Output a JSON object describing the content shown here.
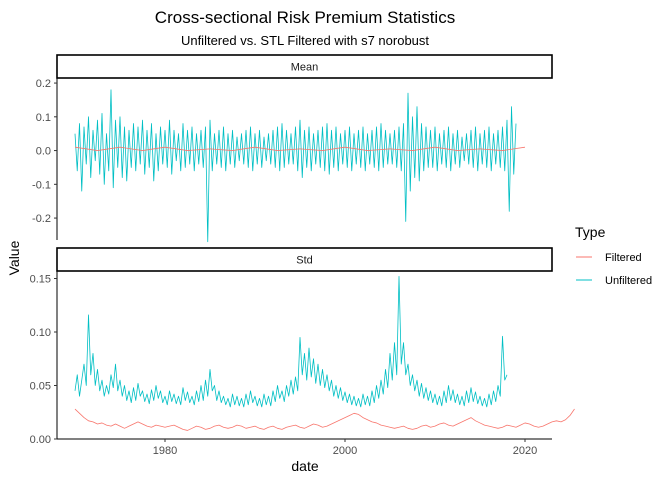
{
  "chart_data": {
    "type": "line",
    "title": "Cross-sectional Risk Premium Statistics",
    "subtitle": "Unfiltered vs. STL Filtered with s7 norobust",
    "xlabel": "date",
    "ylabel": "Value",
    "x_range": [
      1968,
      2023
    ],
    "x_ticks": [
      {
        "value": 1980,
        "label": "1980"
      },
      {
        "value": 2000,
        "label": "2000"
      },
      {
        "value": 2020,
        "label": "2020"
      }
    ],
    "legend": {
      "title": "Type",
      "placement": "right",
      "entries": [
        {
          "name": "Filtered",
          "color": "#F8766D"
        },
        {
          "name": "Unfiltered",
          "color": "#00BFC4"
        }
      ]
    },
    "panels": [
      {
        "label": "Mean",
        "ylim": [
          -0.265,
          0.215
        ],
        "y_ticks": [
          {
            "value": 0.2,
            "label": "0.2"
          },
          {
            "value": 0.1,
            "label": "0.1"
          },
          {
            "value": 0.0,
            "label": "0.0"
          },
          {
            "value": -0.1,
            "label": "-0.1"
          },
          {
            "value": -0.2,
            "label": "-0.2"
          }
        ],
        "series": [
          {
            "name": "Unfiltered",
            "color": "#00BFC4",
            "x_start": 1970.0,
            "x_step": 0.25,
            "values": [
              0.05,
              -0.06,
              0.08,
              -0.12,
              0.07,
              -0.04,
              0.1,
              -0.08,
              0.06,
              -0.03,
              0.09,
              -0.07,
              0.11,
              -0.1,
              0.05,
              -0.06,
              0.18,
              -0.11,
              0.09,
              -0.05,
              0.1,
              -0.08,
              0.07,
              -0.09,
              0.06,
              -0.05,
              0.08,
              -0.06,
              0.07,
              -0.04,
              0.09,
              -0.07,
              0.06,
              -0.05,
              0.08,
              -0.09,
              0.05,
              -0.06,
              0.07,
              -0.04,
              0.06,
              -0.05,
              0.09,
              -0.07,
              0.06,
              -0.03,
              0.05,
              -0.06,
              0.08,
              -0.05,
              0.06,
              -0.04,
              0.07,
              -0.06,
              0.05,
              -0.04,
              0.06,
              -0.05,
              0.07,
              -0.27,
              0.09,
              -0.06,
              0.05,
              -0.04,
              0.06,
              -0.05,
              0.07,
              -0.06,
              0.05,
              -0.04,
              0.06,
              -0.05,
              0.04,
              -0.03,
              0.05,
              -0.04,
              0.06,
              -0.05,
              0.07,
              -0.06,
              0.05,
              -0.04,
              0.06,
              -0.05,
              0.04,
              -0.03,
              0.05,
              -0.04,
              0.06,
              -0.05,
              0.07,
              -0.06,
              0.08,
              -0.05,
              0.06,
              -0.04,
              0.05,
              -0.04,
              0.07,
              -0.06,
              0.09,
              -0.08,
              0.06,
              -0.05,
              0.07,
              -0.06,
              0.05,
              -0.04,
              0.06,
              -0.05,
              0.07,
              -0.06,
              0.08,
              -0.07,
              0.06,
              -0.05,
              0.07,
              -0.06,
              0.05,
              -0.04,
              0.06,
              -0.05,
              0.07,
              -0.06,
              0.05,
              -0.04,
              0.06,
              -0.05,
              0.07,
              -0.06,
              0.05,
              -0.04,
              0.06,
              -0.05,
              0.07,
              -0.06,
              0.08,
              -0.05,
              0.06,
              -0.04,
              0.05,
              -0.04,
              0.06,
              -0.05,
              0.07,
              -0.06,
              0.08,
              -0.21,
              0.17,
              -0.12,
              0.1,
              -0.08,
              0.13,
              -0.09,
              0.08,
              -0.06,
              0.07,
              -0.05,
              0.06,
              -0.05,
              0.07,
              -0.06,
              0.05,
              -0.04,
              0.06,
              -0.05,
              0.07,
              -0.06,
              0.05,
              -0.04,
              0.06,
              -0.05,
              0.04,
              -0.03,
              0.05,
              -0.04,
              0.06,
              -0.05,
              0.07,
              -0.06,
              0.05,
              -0.04,
              0.06,
              -0.05,
              0.07,
              -0.06,
              0.05,
              -0.04,
              0.06,
              -0.05,
              0.07,
              -0.06,
              0.09,
              -0.18,
              0.13,
              -0.07,
              0.08
            ]
          },
          {
            "name": "Filtered",
            "color": "#F8766D",
            "x_start": 1970.0,
            "x_step": 2.5,
            "values": [
              0.01,
              0.0,
              0.01,
              0.0,
              0.01,
              0.0,
              0.005,
              0.0,
              0.01,
              0.0,
              0.005,
              0.0,
              0.01,
              0.0,
              0.005,
              0.0,
              0.01,
              0.0,
              0.005,
              0.0,
              0.01
            ]
          }
        ]
      },
      {
        "label": "Std",
        "ylim": [
          0.0,
          0.157
        ],
        "y_ticks": [
          {
            "value": 0.15,
            "label": "0.15"
          },
          {
            "value": 0.1,
            "label": "0.10"
          },
          {
            "value": 0.05,
            "label": "0.05"
          },
          {
            "value": 0.0,
            "label": "0.00"
          }
        ],
        "series": [
          {
            "name": "Unfiltered",
            "color": "#00BFC4",
            "x_start": 1970.0,
            "x_step": 0.25,
            "values": [
              0.045,
              0.06,
              0.04,
              0.055,
              0.07,
              0.05,
              0.116,
              0.06,
              0.08,
              0.05,
              0.065,
              0.045,
              0.055,
              0.04,
              0.05,
              0.042,
              0.06,
              0.048,
              0.07,
              0.045,
              0.055,
              0.04,
              0.05,
              0.036,
              0.045,
              0.034,
              0.048,
              0.036,
              0.052,
              0.04,
              0.045,
              0.035,
              0.042,
              0.033,
              0.046,
              0.036,
              0.05,
              0.038,
              0.045,
              0.034,
              0.04,
              0.032,
              0.045,
              0.035,
              0.042,
              0.033,
              0.04,
              0.032,
              0.048,
              0.036,
              0.044,
              0.034,
              0.04,
              0.032,
              0.045,
              0.035,
              0.05,
              0.036,
              0.055,
              0.04,
              0.065,
              0.045,
              0.05,
              0.036,
              0.045,
              0.034,
              0.04,
              0.032,
              0.038,
              0.03,
              0.042,
              0.032,
              0.04,
              0.031,
              0.038,
              0.03,
              0.042,
              0.032,
              0.045,
              0.034,
              0.04,
              0.031,
              0.038,
              0.03,
              0.042,
              0.032,
              0.04,
              0.031,
              0.045,
              0.035,
              0.05,
              0.038,
              0.045,
              0.035,
              0.05,
              0.04,
              0.055,
              0.042,
              0.058,
              0.045,
              0.095,
              0.06,
              0.08,
              0.055,
              0.085,
              0.058,
              0.075,
              0.052,
              0.07,
              0.05,
              0.065,
              0.048,
              0.06,
              0.045,
              0.055,
              0.04,
              0.05,
              0.038,
              0.048,
              0.036,
              0.044,
              0.034,
              0.042,
              0.032,
              0.04,
              0.031,
              0.038,
              0.03,
              0.042,
              0.032,
              0.04,
              0.031,
              0.045,
              0.034,
              0.05,
              0.038,
              0.055,
              0.042,
              0.065,
              0.048,
              0.08,
              0.055,
              0.09,
              0.06,
              0.152,
              0.07,
              0.09,
              0.06,
              0.07,
              0.05,
              0.06,
              0.045,
              0.055,
              0.04,
              0.052,
              0.038,
              0.048,
              0.036,
              0.045,
              0.034,
              0.042,
              0.032,
              0.04,
              0.031,
              0.045,
              0.034,
              0.05,
              0.036,
              0.046,
              0.034,
              0.042,
              0.032,
              0.04,
              0.031,
              0.045,
              0.034,
              0.048,
              0.035,
              0.044,
              0.033,
              0.04,
              0.031,
              0.038,
              0.03,
              0.042,
              0.032,
              0.045,
              0.035,
              0.05,
              0.04,
              0.096,
              0.055,
              0.06
            ]
          },
          {
            "name": "Filtered",
            "color": "#F8766D",
            "x_start": 1970.0,
            "x_step": 0.5,
            "values": [
              0.028,
              0.024,
              0.02,
              0.017,
              0.016,
              0.014,
              0.015,
              0.013,
              0.012,
              0.014,
              0.012,
              0.01,
              0.012,
              0.014,
              0.016,
              0.014,
              0.012,
              0.011,
              0.013,
              0.012,
              0.011,
              0.012,
              0.013,
              0.011,
              0.009,
              0.008,
              0.01,
              0.012,
              0.011,
              0.009,
              0.01,
              0.012,
              0.013,
              0.011,
              0.01,
              0.011,
              0.013,
              0.012,
              0.01,
              0.011,
              0.012,
              0.01,
              0.009,
              0.011,
              0.012,
              0.01,
              0.009,
              0.011,
              0.012,
              0.013,
              0.011,
              0.01,
              0.012,
              0.014,
              0.013,
              0.011,
              0.012,
              0.014,
              0.016,
              0.018,
              0.02,
              0.022,
              0.024,
              0.023,
              0.02,
              0.018,
              0.016,
              0.015,
              0.013,
              0.012,
              0.011,
              0.01,
              0.011,
              0.012,
              0.01,
              0.009,
              0.01,
              0.012,
              0.013,
              0.011,
              0.012,
              0.014,
              0.015,
              0.013,
              0.012,
              0.014,
              0.016,
              0.018,
              0.02,
              0.017,
              0.015,
              0.013,
              0.012,
              0.011,
              0.01,
              0.011,
              0.013,
              0.012,
              0.011,
              0.013,
              0.015,
              0.014,
              0.012,
              0.011,
              0.012,
              0.014,
              0.016,
              0.017,
              0.016,
              0.018,
              0.022,
              0.028
            ]
          }
        ]
      }
    ]
  }
}
